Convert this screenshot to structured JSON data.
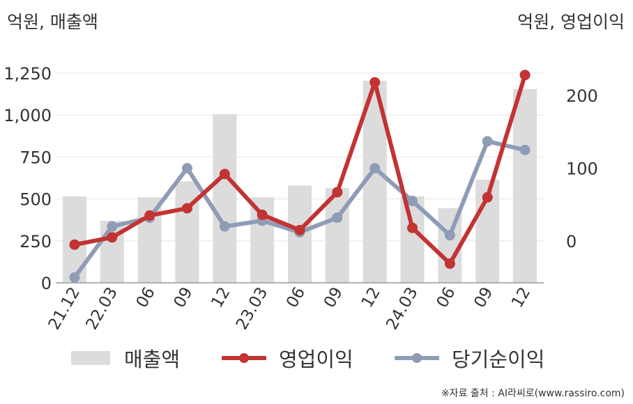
{
  "chart_data": {
    "type": "bar+line",
    "units": {
      "left": "억원, 매출액",
      "right": "억원, 영업이익"
    },
    "categories": [
      "21.12",
      "22.03",
      "06",
      "09",
      "12",
      "23.03",
      "06",
      "09",
      "12",
      "24.03",
      "06",
      "09",
      "12"
    ],
    "left_axis": {
      "min": 0,
      "max": 1250,
      "ticks": [
        0,
        250,
        500,
        750,
        "1,000",
        "1,250"
      ],
      "tick_values": [
        0,
        250,
        500,
        750,
        1000,
        1250
      ]
    },
    "right_axis": {
      "ticks": [
        0,
        100,
        200
      ],
      "tick_values": [
        0,
        100,
        200
      ]
    },
    "series": [
      {
        "name": "매출액",
        "kind": "bar",
        "axis": "left",
        "color": "#dcdcdc",
        "values": [
          515,
          370,
          510,
          605,
          1005,
          510,
          580,
          565,
          1205,
          515,
          445,
          615,
          1155
        ]
      },
      {
        "name": "영업이익",
        "kind": "line",
        "axis": "right",
        "color": "#c23333",
        "values": [
          -5,
          5,
          35,
          45,
          92,
          36,
          15,
          67,
          218,
          18,
          -31,
          60,
          228
        ]
      },
      {
        "name": "당기순이익",
        "kind": "line",
        "axis": "right",
        "color": "#8f9cb6",
        "values": [
          -50,
          20,
          32,
          100,
          20,
          28,
          12,
          32,
          100,
          55,
          8,
          137,
          125
        ]
      }
    ],
    "grid": true,
    "legend_position": "bottom"
  },
  "legend": [
    {
      "label": "매출액"
    },
    {
      "label": "영업이익"
    },
    {
      "label": "당기순이익"
    }
  ],
  "source": "※자료 출처 : AI라씨로(www.rassiro.com)"
}
